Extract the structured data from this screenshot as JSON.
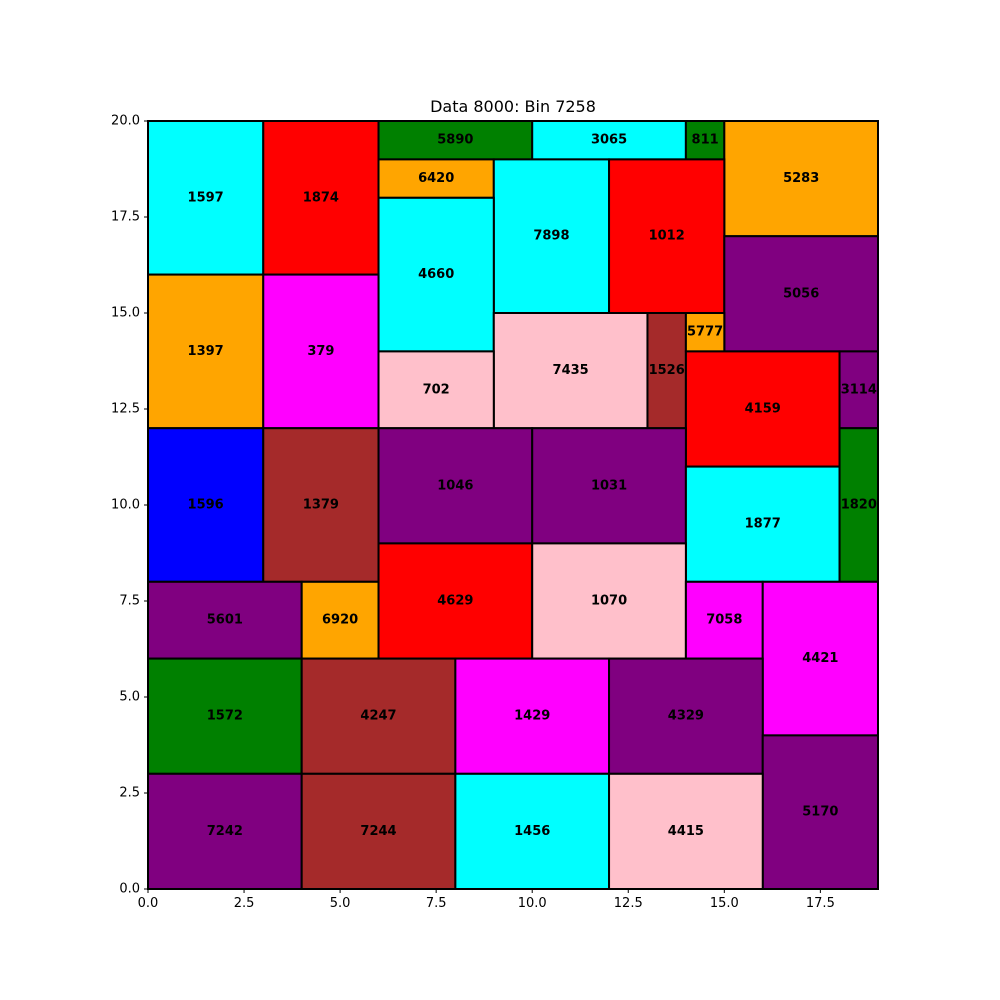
{
  "chart_data": {
    "type": "rectangle-packing",
    "title": "Data 8000: Bin 7258",
    "xlim": [
      0,
      19
    ],
    "ylim": [
      0,
      20
    ],
    "xticks": [
      "0.0",
      "2.5",
      "5.0",
      "7.5",
      "10.0",
      "12.5",
      "15.0",
      "17.5"
    ],
    "yticks": [
      "0.0",
      "2.5",
      "5.0",
      "7.5",
      "10.0",
      "12.5",
      "15.0",
      "17.5",
      "20.0"
    ],
    "grid": false,
    "rects": [
      {
        "label": "1597",
        "x": 0,
        "y": 16,
        "w": 3,
        "h": 4,
        "color": "#00ffff"
      },
      {
        "label": "1874",
        "x": 3,
        "y": 16,
        "w": 3,
        "h": 4,
        "color": "#ff0000"
      },
      {
        "label": "5890",
        "x": 6,
        "y": 19,
        "w": 4,
        "h": 1,
        "color": "#008000"
      },
      {
        "label": "3065",
        "x": 10,
        "y": 19,
        "w": 4,
        "h": 1,
        "color": "#00ffff"
      },
      {
        "label": "811",
        "x": 14,
        "y": 19,
        "w": 1,
        "h": 1,
        "color": "#008000"
      },
      {
        "label": "5283",
        "x": 15,
        "y": 17,
        "w": 4,
        "h": 3,
        "color": "#ffa500"
      },
      {
        "label": "6420",
        "x": 6,
        "y": 18,
        "w": 3,
        "h": 1,
        "color": "#ffa500"
      },
      {
        "label": "7898",
        "x": 9,
        "y": 15,
        "w": 3,
        "h": 4,
        "color": "#00ffff"
      },
      {
        "label": "1012",
        "x": 12,
        "y": 15,
        "w": 3,
        "h": 4,
        "color": "#ff0000"
      },
      {
        "label": "4660",
        "x": 6,
        "y": 14,
        "w": 3,
        "h": 4,
        "color": "#00ffff"
      },
      {
        "label": "5056",
        "x": 15,
        "y": 14,
        "w": 4,
        "h": 3,
        "color": "#800080"
      },
      {
        "label": "1397",
        "x": 0,
        "y": 12,
        "w": 3,
        "h": 4,
        "color": "#ffa500"
      },
      {
        "label": "379",
        "x": 3,
        "y": 12,
        "w": 3,
        "h": 4,
        "color": "#ff00ff"
      },
      {
        "label": "7435",
        "x": 9,
        "y": 12,
        "w": 4,
        "h": 3,
        "color": "#ffc0cb"
      },
      {
        "label": "1526",
        "x": 13,
        "y": 12,
        "w": 1,
        "h": 3,
        "color": "#a52a2a"
      },
      {
        "label": "5777",
        "x": 14,
        "y": 14,
        "w": 1,
        "h": 1,
        "color": "#ffa500"
      },
      {
        "label": "702",
        "x": 6,
        "y": 12,
        "w": 3,
        "h": 2,
        "color": "#ffc0cb"
      },
      {
        "label": "4159",
        "x": 14,
        "y": 11,
        "w": 4,
        "h": 3,
        "color": "#ff0000"
      },
      {
        "label": "3114",
        "x": 18,
        "y": 12,
        "w": 1,
        "h": 2,
        "color": "#800080"
      },
      {
        "label": "1596",
        "x": 0,
        "y": 8,
        "w": 3,
        "h": 4,
        "color": "#0000ff"
      },
      {
        "label": "1379",
        "x": 3,
        "y": 8,
        "w": 3,
        "h": 4,
        "color": "#a52a2a"
      },
      {
        "label": "1046",
        "x": 6,
        "y": 9,
        "w": 4,
        "h": 3,
        "color": "#800080"
      },
      {
        "label": "1031",
        "x": 10,
        "y": 9,
        "w": 4,
        "h": 3,
        "color": "#800080"
      },
      {
        "label": "1877",
        "x": 14,
        "y": 8,
        "w": 4,
        "h": 3,
        "color": "#00ffff"
      },
      {
        "label": "1820",
        "x": 18,
        "y": 8,
        "w": 1,
        "h": 4,
        "color": "#008000"
      },
      {
        "label": "5601",
        "x": 0,
        "y": 6,
        "w": 4,
        "h": 2,
        "color": "#800080"
      },
      {
        "label": "6920",
        "x": 4,
        "y": 6,
        "w": 2,
        "h": 2,
        "color": "#ffa500"
      },
      {
        "label": "4629",
        "x": 6,
        "y": 6,
        "w": 4,
        "h": 3,
        "color": "#ff0000"
      },
      {
        "label": "1070",
        "x": 10,
        "y": 6,
        "w": 4,
        "h": 3,
        "color": "#ffc0cb"
      },
      {
        "label": "7058",
        "x": 14,
        "y": 6,
        "w": 2,
        "h": 2,
        "color": "#ff00ff"
      },
      {
        "label": "4421",
        "x": 16,
        "y": 4,
        "w": 3,
        "h": 4,
        "color": "#ff00ff"
      },
      {
        "label": "1572",
        "x": 0,
        "y": 3,
        "w": 4,
        "h": 3,
        "color": "#008000"
      },
      {
        "label": "4247",
        "x": 4,
        "y": 3,
        "w": 4,
        "h": 3,
        "color": "#a52a2a"
      },
      {
        "label": "1429",
        "x": 8,
        "y": 3,
        "w": 4,
        "h": 3,
        "color": "#ff00ff"
      },
      {
        "label": "4329",
        "x": 12,
        "y": 3,
        "w": 4,
        "h": 3,
        "color": "#800080"
      },
      {
        "label": "5170",
        "x": 16,
        "y": 0,
        "w": 3,
        "h": 4,
        "color": "#800080"
      },
      {
        "label": "7242",
        "x": 0,
        "y": 0,
        "w": 4,
        "h": 3,
        "color": "#800080"
      },
      {
        "label": "7244",
        "x": 4,
        "y": 0,
        "w": 4,
        "h": 3,
        "color": "#a52a2a"
      },
      {
        "label": "1456",
        "x": 8,
        "y": 0,
        "w": 4,
        "h": 3,
        "color": "#00ffff"
      },
      {
        "label": "4415",
        "x": 12,
        "y": 0,
        "w": 4,
        "h": 3,
        "color": "#ffc0cb"
      }
    ]
  }
}
